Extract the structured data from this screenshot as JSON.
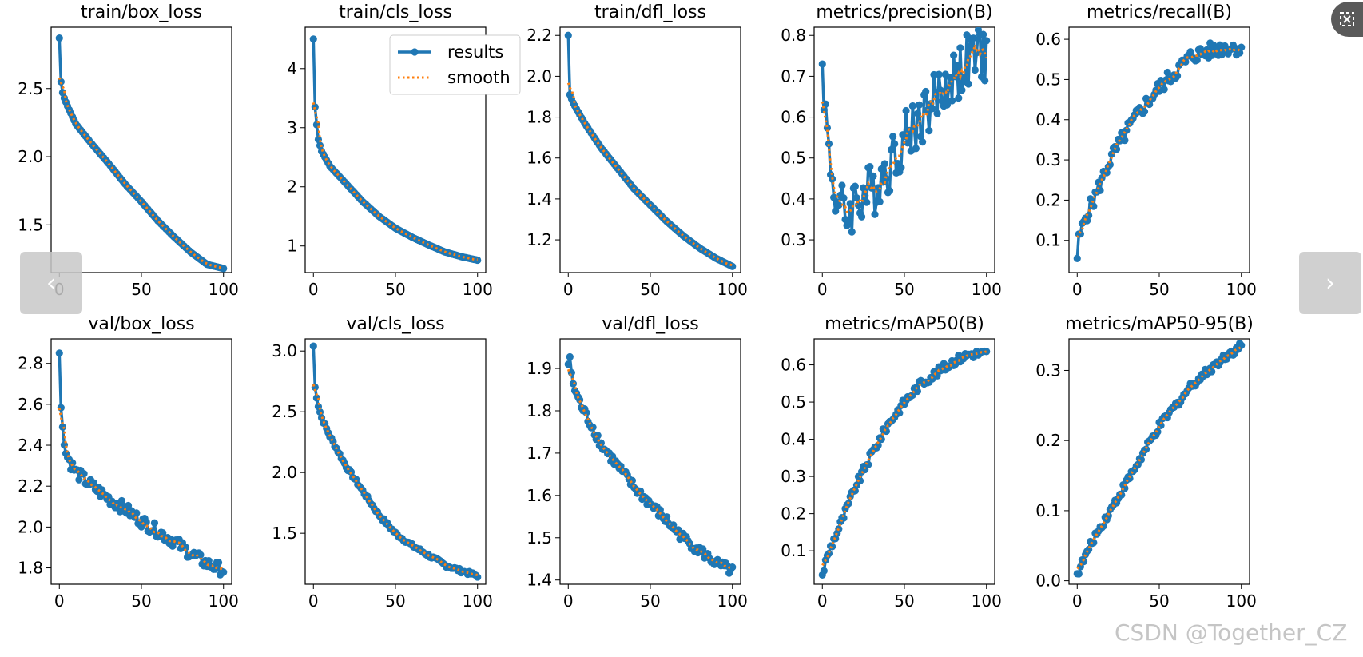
{
  "colors": {
    "results": "#1f77b4",
    "smooth": "#ff7f0e",
    "nav_bg": "#c8c8c8"
  },
  "legend": {
    "results_label": "results",
    "smooth_label": "smooth"
  },
  "nav": {
    "prev_icon": "chevron-left-icon",
    "prev_glyph": "‹",
    "next_icon": "chevron-right-icon",
    "next_glyph": "›",
    "expand_icon": "expand-icon"
  },
  "watermark": "CSDN @Together_CZ",
  "chart_data": [
    {
      "type": "line",
      "title": "train/box_loss",
      "xlim": [
        -5,
        105
      ],
      "ylim": [
        1.15,
        2.95
      ],
      "xticks": [
        0,
        50,
        100
      ],
      "yticks": [
        1.5,
        2.0,
        2.5
      ],
      "yfmt": 1,
      "start": 2.87,
      "k": [
        [
          1,
          2.55
        ],
        [
          2,
          2.47
        ],
        [
          3,
          2.43
        ],
        [
          5,
          2.37
        ],
        [
          10,
          2.24
        ],
        [
          20,
          2.09
        ],
        [
          30,
          1.95
        ],
        [
          40,
          1.8
        ],
        [
          50,
          1.67
        ],
        [
          60,
          1.53
        ],
        [
          70,
          1.41
        ],
        [
          80,
          1.3
        ],
        [
          90,
          1.21
        ],
        [
          100,
          1.18
        ]
      ],
      "noise": 0.0,
      "seed": 1
    },
    {
      "type": "line",
      "title": "train/cls_loss",
      "xlim": [
        -5,
        105
      ],
      "ylim": [
        0.55,
        4.7
      ],
      "xticks": [
        0,
        50,
        100
      ],
      "yticks": [
        1,
        2,
        3,
        4
      ],
      "yfmt": 0,
      "start": 4.5,
      "k": [
        [
          1,
          3.35
        ],
        [
          2,
          3.05
        ],
        [
          3,
          2.8
        ],
        [
          5,
          2.6
        ],
        [
          10,
          2.35
        ],
        [
          20,
          2.05
        ],
        [
          30,
          1.75
        ],
        [
          40,
          1.5
        ],
        [
          50,
          1.3
        ],
        [
          60,
          1.15
        ],
        [
          70,
          1.02
        ],
        [
          80,
          0.9
        ],
        [
          90,
          0.82
        ],
        [
          100,
          0.76
        ]
      ],
      "noise": 0.0,
      "seed": 2
    },
    {
      "type": "line",
      "title": "train/dfl_loss",
      "xlim": [
        -5,
        105
      ],
      "ylim": [
        1.04,
        2.24
      ],
      "xticks": [
        0,
        50,
        100
      ],
      "yticks": [
        1.2,
        1.4,
        1.6,
        1.8,
        2.0,
        2.2
      ],
      "yfmt": 1,
      "start": 2.2,
      "k": [
        [
          1,
          1.91
        ],
        [
          2,
          1.89
        ],
        [
          3,
          1.87
        ],
        [
          5,
          1.84
        ],
        [
          10,
          1.77
        ],
        [
          20,
          1.65
        ],
        [
          30,
          1.55
        ],
        [
          40,
          1.45
        ],
        [
          50,
          1.37
        ],
        [
          60,
          1.29
        ],
        [
          70,
          1.22
        ],
        [
          80,
          1.16
        ],
        [
          90,
          1.11
        ],
        [
          100,
          1.07
        ]
      ],
      "noise": 0.0,
      "seed": 3
    },
    {
      "type": "line",
      "title": "metrics/precision(B)",
      "xlim": [
        -5,
        105
      ],
      "ylim": [
        0.22,
        0.82
      ],
      "xticks": [
        0,
        50,
        100
      ],
      "yticks": [
        0.3,
        0.4,
        0.5,
        0.6,
        0.7,
        0.8
      ],
      "yfmt": 1,
      "start": 0.73,
      "k": [
        [
          1,
          0.68
        ],
        [
          2,
          0.6
        ],
        [
          4,
          0.52
        ],
        [
          6,
          0.45
        ],
        [
          10,
          0.38
        ],
        [
          15,
          0.36
        ],
        [
          20,
          0.4
        ],
        [
          30,
          0.42
        ],
        [
          40,
          0.48
        ],
        [
          50,
          0.55
        ],
        [
          60,
          0.6
        ],
        [
          70,
          0.65
        ],
        [
          80,
          0.7
        ],
        [
          90,
          0.74
        ],
        [
          100,
          0.76
        ]
      ],
      "noise": 0.07,
      "seed": 4
    },
    {
      "type": "line",
      "title": "metrics/recall(B)",
      "xlim": [
        -5,
        105
      ],
      "ylim": [
        0.02,
        0.63
      ],
      "xticks": [
        0,
        50,
        100
      ],
      "yticks": [
        0.1,
        0.2,
        0.3,
        0.4,
        0.5,
        0.6
      ],
      "yfmt": 1,
      "start": 0.055,
      "k": [
        [
          1,
          0.1
        ],
        [
          5,
          0.16
        ],
        [
          10,
          0.2
        ],
        [
          20,
          0.3
        ],
        [
          30,
          0.37
        ],
        [
          40,
          0.43
        ],
        [
          50,
          0.48
        ],
        [
          60,
          0.52
        ],
        [
          70,
          0.56
        ],
        [
          80,
          0.57
        ],
        [
          90,
          0.58
        ],
        [
          100,
          0.58
        ]
      ],
      "noise": 0.02,
      "seed": 5
    },
    {
      "type": "line",
      "title": "val/box_loss",
      "xlim": [
        -5,
        105
      ],
      "ylim": [
        1.72,
        2.92
      ],
      "xticks": [
        0,
        50,
        100
      ],
      "yticks": [
        1.8,
        2.0,
        2.2,
        2.4,
        2.6,
        2.8
      ],
      "yfmt": 1,
      "start": 2.85,
      "k": [
        [
          1,
          2.57
        ],
        [
          2,
          2.5
        ],
        [
          4,
          2.36
        ],
        [
          7,
          2.31
        ],
        [
          10,
          2.27
        ],
        [
          20,
          2.2
        ],
        [
          30,
          2.14
        ],
        [
          40,
          2.09
        ],
        [
          50,
          2.03
        ],
        [
          60,
          1.98
        ],
        [
          70,
          1.93
        ],
        [
          80,
          1.87
        ],
        [
          90,
          1.82
        ],
        [
          100,
          1.79
        ]
      ],
      "noise": 0.03,
      "seed": 6
    },
    {
      "type": "line",
      "title": "val/cls_loss",
      "xlim": [
        -5,
        105
      ],
      "ylim": [
        1.08,
        3.1
      ],
      "xticks": [
        0,
        50,
        100
      ],
      "yticks": [
        1.5,
        2.0,
        2.5,
        3.0
      ],
      "yfmt": 1,
      "start": 3.04,
      "k": [
        [
          1,
          2.7
        ],
        [
          3,
          2.55
        ],
        [
          5,
          2.45
        ],
        [
          10,
          2.3
        ],
        [
          20,
          2.05
        ],
        [
          30,
          1.85
        ],
        [
          40,
          1.65
        ],
        [
          50,
          1.5
        ],
        [
          60,
          1.4
        ],
        [
          70,
          1.32
        ],
        [
          80,
          1.24
        ],
        [
          90,
          1.19
        ],
        [
          100,
          1.15
        ]
      ],
      "noise": 0.015,
      "seed": 7
    },
    {
      "type": "line",
      "title": "val/dfl_loss",
      "xlim": [
        -5,
        105
      ],
      "ylim": [
        1.39,
        1.97
      ],
      "xticks": [
        0,
        50,
        100
      ],
      "yticks": [
        1.4,
        1.5,
        1.6,
        1.7,
        1.8,
        1.9
      ],
      "yfmt": 1,
      "start": 1.91,
      "k": [
        [
          1,
          1.93
        ],
        [
          2,
          1.88
        ],
        [
          4,
          1.85
        ],
        [
          8,
          1.81
        ],
        [
          15,
          1.76
        ],
        [
          20,
          1.72
        ],
        [
          30,
          1.67
        ],
        [
          40,
          1.62
        ],
        [
          50,
          1.58
        ],
        [
          60,
          1.54
        ],
        [
          70,
          1.5
        ],
        [
          80,
          1.47
        ],
        [
          90,
          1.44
        ],
        [
          100,
          1.42
        ]
      ],
      "noise": 0.012,
      "seed": 8
    },
    {
      "type": "line",
      "title": "metrics/mAP50(B)",
      "xlim": [
        -5,
        105
      ],
      "ylim": [
        0.01,
        0.67
      ],
      "xticks": [
        0,
        50,
        100
      ],
      "yticks": [
        0.1,
        0.2,
        0.3,
        0.4,
        0.5,
        0.6
      ],
      "yfmt": 1,
      "start": 0.035,
      "k": [
        [
          2,
          0.07
        ],
        [
          5,
          0.11
        ],
        [
          10,
          0.16
        ],
        [
          20,
          0.27
        ],
        [
          30,
          0.36
        ],
        [
          40,
          0.44
        ],
        [
          50,
          0.5
        ],
        [
          60,
          0.55
        ],
        [
          70,
          0.58
        ],
        [
          80,
          0.61
        ],
        [
          90,
          0.63
        ],
        [
          100,
          0.63
        ]
      ],
      "noise": 0.012,
      "seed": 9
    },
    {
      "type": "line",
      "title": "metrics/mAP50-95(B)",
      "xlim": [
        -5,
        105
      ],
      "ylim": [
        -0.005,
        0.345
      ],
      "xticks": [
        0,
        50,
        100
      ],
      "yticks": [
        0.0,
        0.1,
        0.2,
        0.3
      ],
      "yfmt": 1,
      "start": 0.01,
      "k": [
        [
          2,
          0.02
        ],
        [
          5,
          0.035
        ],
        [
          10,
          0.06
        ],
        [
          20,
          0.1
        ],
        [
          30,
          0.14
        ],
        [
          40,
          0.18
        ],
        [
          50,
          0.22
        ],
        [
          60,
          0.25
        ],
        [
          70,
          0.28
        ],
        [
          80,
          0.3
        ],
        [
          90,
          0.32
        ],
        [
          100,
          0.335
        ]
      ],
      "noise": 0.006,
      "seed": 10
    }
  ]
}
